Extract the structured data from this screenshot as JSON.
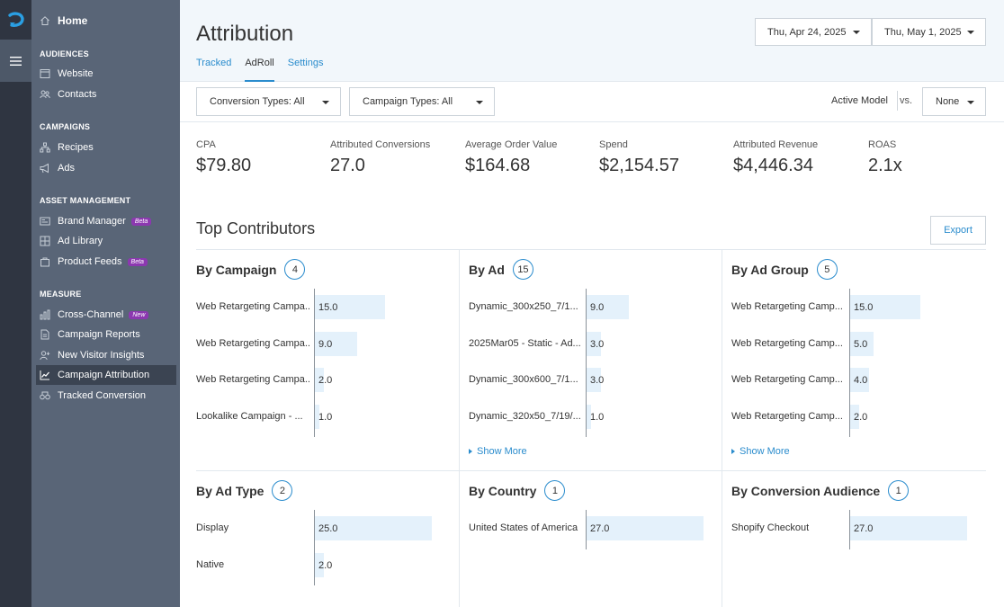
{
  "sidebar": {
    "home": "Home",
    "sections": [
      {
        "title": "AUDIENCES",
        "items": [
          {
            "label": "Website",
            "icon": "browser-icon"
          },
          {
            "label": "Contacts",
            "icon": "contacts-icon"
          }
        ]
      },
      {
        "title": "CAMPAIGNS",
        "items": [
          {
            "label": "Recipes",
            "icon": "recipes-icon"
          },
          {
            "label": "Ads",
            "icon": "megaphone-icon"
          }
        ]
      },
      {
        "title": "ASSET MANAGEMENT",
        "items": [
          {
            "label": "Brand Manager",
            "icon": "brand-manager-icon",
            "badge": "Beta"
          },
          {
            "label": "Ad Library",
            "icon": "grid-icon"
          },
          {
            "label": "Product Feeds",
            "icon": "bag-icon",
            "badge": "Beta"
          }
        ]
      },
      {
        "title": "MEASURE",
        "items": [
          {
            "label": "Cross-Channel",
            "icon": "bar-chart-icon",
            "badge": "New"
          },
          {
            "label": "Campaign Reports",
            "icon": "report-icon"
          },
          {
            "label": "New Visitor Insights",
            "icon": "visitors-icon"
          },
          {
            "label": "Campaign Attribution",
            "icon": "line-chart-icon",
            "active": true
          },
          {
            "label": "Tracked Conversion",
            "icon": "conversion-icon"
          }
        ]
      }
    ]
  },
  "header": {
    "title": "Attribution",
    "tabs": [
      "Tracked",
      "AdRoll",
      "Settings"
    ],
    "active_tab": "AdRoll",
    "start_date": "Thu, Apr 24, 2025",
    "end_date": "Thu, May 1, 2025"
  },
  "filters": {
    "conversion_types": "Conversion Types: All",
    "campaign_types": "Campaign Types: All",
    "active_model": "Active Model",
    "vs": "vs.",
    "compare_model": "None"
  },
  "metrics": [
    {
      "label": "CPA",
      "value": "$79.80"
    },
    {
      "label": "Attributed Conversions",
      "value": "27.0"
    },
    {
      "label": "Average Order Value",
      "value": "$164.68"
    },
    {
      "label": "Spend",
      "value": "$2,154.57"
    },
    {
      "label": "Attributed Revenue",
      "value": "$4,446.34"
    },
    {
      "label": "ROAS",
      "value": "2.1x"
    }
  ],
  "top_contributors": {
    "title": "Top Contributors",
    "export": "Export",
    "show_more": "Show More",
    "panels": [
      {
        "title": "By Campaign",
        "count": "4",
        "max": 25,
        "rows": [
          {
            "label": "Web Retargeting Campa...",
            "value": 15.0,
            "text": "15.0"
          },
          {
            "label": "Web Retargeting Campa...",
            "value": 9.0,
            "text": "9.0"
          },
          {
            "label": "Web Retargeting Campa...",
            "value": 2.0,
            "text": "2.0"
          },
          {
            "label": "Lookalike Campaign - ...",
            "value": 1.0,
            "text": "1.0"
          }
        ]
      },
      {
        "title": "By Ad",
        "count": "15",
        "max": 25,
        "show_more": true,
        "rows": [
          {
            "label": "Dynamic_300x250_7/1...",
            "value": 9.0,
            "text": "9.0"
          },
          {
            "label": "2025Mar05 - Static - Ad...",
            "value": 3.0,
            "text": "3.0"
          },
          {
            "label": "Dynamic_300x600_7/1...",
            "value": 3.0,
            "text": "3.0"
          },
          {
            "label": "Dynamic_320x50_7/19/...",
            "value": 1.0,
            "text": "1.0"
          }
        ]
      },
      {
        "title": "By Ad Group",
        "count": "5",
        "max": 25,
        "show_more": true,
        "rows": [
          {
            "label": "Web Retargeting Camp...",
            "value": 15.0,
            "text": "15.0"
          },
          {
            "label": "Web Retargeting Camp...",
            "value": 5.0,
            "text": "5.0"
          },
          {
            "label": "Web Retargeting Camp...",
            "value": 4.0,
            "text": "4.0"
          },
          {
            "label": "Web Retargeting Camp...",
            "value": 2.0,
            "text": "2.0"
          }
        ]
      },
      {
        "title": "By Ad Type",
        "count": "2",
        "max": 25,
        "rows": [
          {
            "label": "Display",
            "value": 25.0,
            "text": "25.0"
          },
          {
            "label": "Native",
            "value": 2.0,
            "text": "2.0"
          }
        ]
      },
      {
        "title": "By Country",
        "count": "1",
        "max": 27,
        "rows": [
          {
            "label": "United States of America",
            "value": 27.0,
            "text": "27.0"
          }
        ]
      },
      {
        "title": "By Conversion Audience",
        "count": "1",
        "max": 27,
        "rows": [
          {
            "label": "Shopify Checkout",
            "value": 27.0,
            "text": "27.0"
          }
        ]
      }
    ]
  },
  "colors": {
    "accent": "#2a8ccd",
    "sidebar": "#596577",
    "rail": "#2f3541",
    "bar": "#e4f1fb",
    "badge": "#8c38b0"
  }
}
